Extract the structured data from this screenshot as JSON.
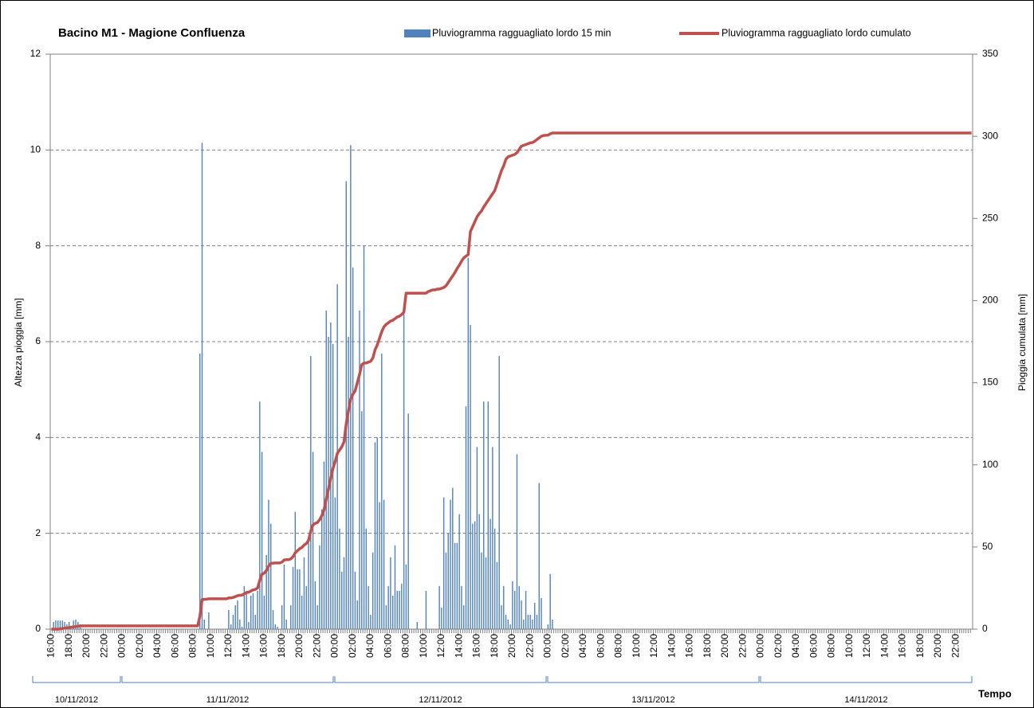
{
  "chart_data": {
    "type": "bar",
    "title": "Bacino M1 - Magione Confluenza",
    "ylabel": "Altezza pioggia [mm]",
    "y2label": "Pioggia cumulata [mm]",
    "xlabel": "Tempo",
    "ylim": [
      0,
      12
    ],
    "yticks": [
      0,
      2,
      4,
      6,
      8,
      10,
      12
    ],
    "y2lim": [
      0,
      350
    ],
    "y2ticks": [
      0,
      50,
      100,
      150,
      200,
      250,
      300,
      350
    ],
    "grid": true,
    "date_labels": [
      "10/11/2012",
      "11/11/2012",
      "12/11/2012",
      "13/11/2012",
      "14/11/2012"
    ],
    "categories": [
      "16:00",
      null,
      null,
      null,
      null,
      null,
      null,
      null,
      "18:00",
      null,
      null,
      null,
      null,
      null,
      null,
      null,
      "20:00",
      null,
      null,
      null,
      null,
      null,
      null,
      null,
      "22:00",
      null,
      null,
      null,
      null,
      null,
      null,
      null,
      "00:00",
      null,
      null,
      null,
      null,
      null,
      null,
      null,
      "02:00",
      null,
      null,
      null,
      null,
      null,
      null,
      null,
      "04:00",
      null,
      null,
      null,
      null,
      null,
      null,
      null,
      "06:00",
      null,
      null,
      null,
      null,
      null,
      null,
      null,
      "08:00",
      null,
      null,
      null,
      null,
      null,
      null,
      null,
      "10:00",
      null,
      null,
      null,
      null,
      null,
      null,
      null,
      "12:00",
      null,
      null,
      null,
      null,
      null,
      null,
      null,
      "14:00",
      null,
      null,
      null,
      null,
      null,
      null,
      null,
      "16:00",
      null,
      null,
      null,
      null,
      null,
      null,
      null,
      "18:00",
      null,
      null,
      null,
      null,
      null,
      null,
      null,
      "20:00",
      null,
      null,
      null,
      null,
      null,
      null,
      null,
      "22:00",
      null,
      null,
      null,
      null,
      null,
      null,
      null,
      "00:00",
      null,
      null,
      null,
      null,
      null,
      null,
      null,
      "02:00",
      null,
      null,
      null,
      null,
      null,
      null,
      null,
      "04:00",
      null,
      null,
      null,
      null,
      null,
      null,
      null,
      "06:00",
      null,
      null,
      null,
      null,
      null,
      null,
      null,
      "08:00",
      null,
      null,
      null,
      null,
      null,
      null,
      null,
      "10:00",
      null,
      null,
      null,
      null,
      null,
      null,
      null,
      "12:00",
      null,
      null,
      null,
      null,
      null,
      null,
      null,
      "14:00",
      null,
      null,
      null,
      null,
      null,
      null,
      null,
      "16:00",
      null,
      null,
      null,
      null,
      null,
      null,
      null,
      "18:00",
      null,
      null,
      null,
      null,
      null,
      null,
      null,
      "20:00",
      null,
      null,
      null,
      null,
      null,
      null,
      null,
      "22:00",
      null,
      null,
      null,
      null,
      null,
      null,
      null,
      "00:00",
      null,
      null,
      null,
      null,
      null,
      null,
      null,
      "02:00",
      null,
      null,
      null,
      null,
      null,
      null,
      null,
      "04:00",
      null,
      null,
      null,
      null,
      null,
      null,
      null,
      "06:00",
      null,
      null,
      null,
      null,
      null,
      null,
      null,
      "08:00",
      null,
      null,
      null,
      null,
      null,
      null,
      null,
      "10:00",
      null,
      null,
      null,
      null,
      null,
      null,
      null,
      "12:00",
      null,
      null,
      null,
      null,
      null,
      null,
      null,
      "14:00",
      null,
      null,
      null,
      null,
      null,
      null,
      null,
      "16:00",
      null,
      null,
      null,
      null,
      null,
      null,
      null,
      "18:00",
      null,
      null,
      null,
      null,
      null,
      null,
      null,
      "20:00",
      null,
      null,
      null,
      null,
      null,
      null,
      null,
      "22:00",
      null,
      null,
      null,
      null,
      null,
      null,
      null,
      "00:00",
      null,
      null,
      null,
      null,
      null,
      null,
      null,
      "02:00",
      null,
      null,
      null,
      null,
      null,
      null,
      null,
      "04:00",
      null,
      null,
      null,
      null,
      null,
      null,
      null,
      "06:00",
      null,
      null,
      null,
      null,
      null,
      null,
      null,
      "08:00",
      null,
      null,
      null,
      null,
      null,
      null,
      null,
      "10:00",
      null,
      null,
      null,
      null,
      null,
      null,
      null,
      "12:00",
      null,
      null,
      null,
      null,
      null,
      null,
      null,
      "14:00",
      null,
      null,
      null,
      null,
      null,
      null,
      null,
      "16:00",
      null,
      null,
      null,
      null,
      null,
      null,
      null,
      "18:00",
      null,
      null,
      null,
      null,
      null,
      null,
      null,
      "20:00",
      null,
      null,
      null,
      null,
      null,
      null,
      null,
      "22:00",
      null,
      null,
      null,
      null,
      null,
      null,
      null
    ],
    "series": [
      {
        "name": "Pluviogramma ragguagliato lordo 15 min",
        "type": "bar",
        "color": "#4f81bd",
        "values": [
          0,
          0.15,
          0.18,
          0.18,
          0.18,
          0.18,
          0.15,
          0.1,
          0.15,
          0,
          0.18,
          0.2,
          0.15,
          0.1,
          0,
          0,
          0,
          0,
          0,
          0,
          0,
          0,
          0,
          0,
          0,
          0,
          0,
          0,
          0,
          0,
          0,
          0,
          0,
          0,
          0,
          0,
          0,
          0,
          0,
          0,
          0,
          0,
          0,
          0,
          0,
          0,
          0,
          0,
          0,
          0,
          0,
          0,
          0,
          0,
          0,
          0,
          0,
          0,
          0,
          0,
          0,
          0,
          0,
          0,
          0,
          0,
          0,
          5.75,
          10.15,
          0.2,
          0,
          0.35,
          0,
          0,
          0,
          0,
          0,
          0,
          0,
          0,
          0.4,
          0.1,
          0.3,
          0.5,
          0.6,
          0.2,
          0.05,
          0.9,
          0.8,
          0.15,
          0.7,
          0.75,
          0.3,
          0.8,
          4.75,
          3.7,
          0.7,
          1.55,
          2.7,
          2.2,
          0.4,
          0.1,
          0.05,
          0,
          0.5,
          1.35,
          0.2,
          0,
          0.5,
          1.3,
          2.45,
          1.25,
          1.25,
          0.7,
          1.5,
          0.9,
          1.9,
          5.7,
          3.7,
          1,
          0.5,
          1.75,
          2.5,
          3.5,
          6.65,
          6.1,
          6.4,
          5.95,
          2.75,
          7.2,
          2.1,
          1.2,
          1.5,
          9.35,
          6.1,
          10.1,
          7.55,
          1.2,
          0.6,
          6.65,
          4.55,
          8,
          2.1,
          0.9,
          0.3,
          1.6,
          3.9,
          4,
          2.65,
          5.75,
          2.7,
          0.5,
          0.9,
          1.5,
          0.7,
          1.75,
          0.8,
          0.8,
          0.95,
          6.7,
          1.35,
          4.5,
          0,
          0,
          0,
          0.15,
          0,
          0,
          0,
          0.8,
          0,
          0,
          0,
          0,
          0,
          0.9,
          0.45,
          2.75,
          1.6,
          2,
          2.7,
          2.95,
          1.8,
          1.8,
          2.4,
          0.9,
          0.5,
          4.65,
          7.75,
          6.35,
          2.2,
          2.25,
          3.8,
          2.4,
          1.6,
          4.75,
          1.5,
          4.75,
          2.3,
          3.8,
          2.1,
          1.4,
          5.7,
          0.5,
          0.9,
          0.3,
          0.2,
          0.1,
          1,
          0.8,
          3.65,
          0.9,
          0.6,
          0.2,
          0.8,
          0.3,
          0.3,
          0.2,
          0.55,
          0.3,
          3.05,
          0.65,
          0,
          0,
          0.1,
          1.15,
          0.2,
          0,
          0,
          0,
          0,
          0,
          0,
          0,
          0,
          0,
          0,
          0,
          0,
          0,
          0,
          0,
          0,
          0,
          0,
          0,
          0,
          0,
          0,
          0,
          0,
          0,
          0,
          0,
          0,
          0,
          0,
          0,
          0,
          0,
          0,
          0,
          0,
          0,
          0,
          0,
          0,
          0,
          0,
          0,
          0,
          0,
          0,
          0,
          0,
          0,
          0,
          0,
          0,
          0,
          0,
          0,
          0,
          0,
          0,
          0,
          0,
          0,
          0,
          0,
          0,
          0,
          0,
          0,
          0,
          0,
          0,
          0,
          0,
          0,
          0,
          0,
          0,
          0,
          0,
          0,
          0,
          0,
          0,
          0,
          0,
          0,
          0,
          0,
          0,
          0,
          0,
          0,
          0,
          0,
          0,
          0,
          0,
          0,
          0,
          0,
          0,
          0,
          0,
          0,
          0,
          0,
          0,
          0,
          0,
          0,
          0,
          0,
          0,
          0,
          0,
          0,
          0,
          0,
          0,
          0,
          0,
          0,
          0,
          0,
          0,
          0,
          0,
          0,
          0,
          0,
          0,
          0,
          0,
          0,
          0,
          0,
          0,
          0,
          0,
          0,
          0,
          0,
          0,
          0,
          0,
          0,
          0,
          0,
          0,
          0,
          0,
          0,
          0,
          0,
          0,
          0,
          0,
          0,
          0,
          0,
          0,
          0,
          0,
          0,
          0,
          0,
          0,
          0,
          0,
          0,
          0,
          0,
          0,
          0,
          0,
          0,
          0,
          0,
          0,
          0,
          0,
          0,
          0,
          0,
          0,
          0,
          0,
          0,
          0,
          0
        ]
      },
      {
        "name": "Pluviogramma ragguagliato lordo cumulato",
        "type": "line",
        "axis": "y2",
        "color": "#c0504d",
        "values": [
          0,
          0,
          0,
          0,
          0.2,
          0.4,
          0.6,
          0.8,
          1,
          1.2,
          1.4,
          1.6,
          1.8,
          2,
          2,
          2,
          2,
          2,
          2,
          2,
          2,
          2,
          2,
          2,
          2,
          2,
          2,
          2,
          2,
          2,
          2,
          2,
          2,
          2,
          2,
          2,
          2,
          2,
          2,
          2,
          2,
          2,
          2,
          2,
          2,
          2,
          2,
          2,
          2,
          2,
          2,
          2,
          2,
          2,
          2,
          2,
          2,
          2,
          2,
          2,
          2,
          2,
          2,
          2,
          2,
          2,
          2,
          7.8,
          18,
          18.2,
          18.2,
          18.5,
          18.5,
          18.5,
          18.5,
          18.5,
          18.5,
          18.5,
          18.5,
          18.5,
          19,
          19,
          19.3,
          19.8,
          20.4,
          20.6,
          20.7,
          21.5,
          22.3,
          22.5,
          23.2,
          23.9,
          24.2,
          25,
          29.7,
          33.4,
          34.1,
          35.7,
          38.4,
          40,
          40.2,
          40.3,
          40.3,
          40.3,
          40.8,
          42.1,
          42.3,
          42.3,
          42.8,
          44.1,
          46.5,
          47.8,
          49,
          49.7,
          51.2,
          52.1,
          54,
          59.7,
          63.4,
          64.4,
          64.9,
          66.6,
          69.1,
          72.6,
          79.3,
          85.4,
          91.8,
          97.7,
          102,
          107,
          109,
          111,
          114,
          125,
          133,
          140,
          143,
          145,
          150,
          155,
          161,
          162,
          162,
          162.5,
          163,
          165,
          170,
          173,
          177,
          181,
          184,
          185.5,
          186.5,
          187.5,
          188,
          189,
          190,
          190.5,
          191.5,
          193,
          204.5,
          204.5,
          204.5,
          204.5,
          204.5,
          204.5,
          204.5,
          204.5,
          204.5,
          204.5,
          205.5,
          206,
          206.5,
          206.5,
          207,
          207,
          207.5,
          208,
          209,
          211,
          213,
          215,
          217,
          219.5,
          221.5,
          224,
          226,
          227,
          228,
          242,
          245,
          248,
          251,
          253,
          254.5,
          257,
          259,
          261,
          263,
          265,
          267,
          271,
          275,
          279,
          282,
          286,
          287.5,
          288,
          288.5,
          289,
          290,
          292,
          294,
          294.5,
          295,
          295.5,
          296,
          296.2,
          297,
          298,
          299,
          300,
          300.5,
          300.6,
          300.7,
          301.5,
          302,
          302,
          302,
          302,
          302,
          302,
          302,
          302,
          302,
          302,
          302,
          302,
          302,
          302,
          302,
          302,
          302,
          302,
          302,
          302,
          302,
          302,
          302,
          302,
          302,
          302,
          302,
          302,
          302,
          302,
          302,
          302,
          302,
          302,
          302,
          302,
          302,
          302,
          302,
          302,
          302,
          302,
          302,
          302,
          302,
          302,
          302,
          302,
          302,
          302,
          302,
          302,
          302,
          302,
          302,
          302,
          302,
          302,
          302,
          302,
          302,
          302,
          302,
          302,
          302,
          302,
          302,
          302,
          302,
          302,
          302,
          302,
          302,
          302,
          302,
          302,
          302,
          302,
          302,
          302,
          302,
          302,
          302,
          302,
          302,
          302,
          302,
          302,
          302,
          302,
          302,
          302,
          302,
          302,
          302,
          302,
          302,
          302,
          302,
          302,
          302,
          302,
          302,
          302,
          302,
          302,
          302,
          302,
          302,
          302,
          302,
          302,
          302,
          302,
          302,
          302,
          302,
          302,
          302,
          302,
          302,
          302,
          302,
          302,
          302,
          302,
          302,
          302,
          302,
          302,
          302,
          302,
          302,
          302,
          302,
          302,
          302,
          302,
          302,
          302,
          302,
          302,
          302,
          302,
          302,
          302,
          302,
          302,
          302,
          302,
          302,
          302,
          302,
          302,
          302,
          302,
          302,
          302,
          302,
          302,
          302,
          302,
          302,
          302,
          302,
          302,
          302,
          302,
          302,
          302,
          302,
          302,
          302,
          302,
          302,
          302,
          302,
          302,
          302,
          302,
          302,
          302,
          302,
          302,
          302,
          302,
          302,
          302,
          302,
          302
        ]
      }
    ]
  }
}
